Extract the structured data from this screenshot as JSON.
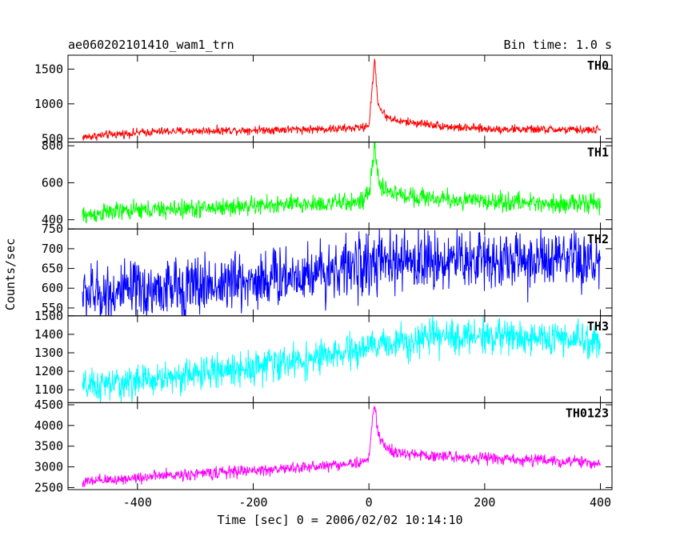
{
  "chart_data": {
    "type": "line",
    "title": "ae060202101410_wam1_trn",
    "subtitle": "Bin time: 1.0 s",
    "xlabel": "Time [sec] 0 = 2006/02/02 10:14:10",
    "ylabel": "Counts/sec",
    "xlim": [
      -520,
      420
    ],
    "xticks": [
      -400,
      -200,
      0,
      200,
      400
    ],
    "grid": false,
    "shared_x_axis": true,
    "panels": [
      {
        "name": "TH0",
        "color": "#ff0000",
        "ylim": [
          450,
          1700
        ],
        "yticks": [
          500,
          1000,
          1500
        ],
        "x": [
          -495,
          -450,
          -400,
          -350,
          -300,
          -250,
          -200,
          -150,
          -100,
          -50,
          -10,
          0,
          5,
          10,
          15,
          20,
          30,
          50,
          100,
          150,
          200,
          250,
          300,
          350,
          400
        ],
        "y": [
          520,
          555,
          585,
          605,
          610,
          618,
          625,
          630,
          635,
          642,
          660,
          700,
          1150,
          1650,
          1050,
          920,
          820,
          750,
          710,
          660,
          640,
          635,
          630,
          625,
          625
        ],
        "noise": 30
      },
      {
        "name": "TH1",
        "color": "#00ff00",
        "ylim": [
          350,
          820
        ],
        "yticks": [
          400,
          600,
          800
        ],
        "x": [
          -495,
          -450,
          -400,
          -350,
          -300,
          -250,
          -200,
          -150,
          -100,
          -50,
          -10,
          0,
          5,
          10,
          15,
          20,
          30,
          50,
          100,
          150,
          200,
          250,
          300,
          350,
          400
        ],
        "y": [
          420,
          440,
          450,
          455,
          460,
          468,
          475,
          480,
          485,
          490,
          500,
          540,
          660,
          800,
          640,
          590,
          560,
          535,
          520,
          505,
          500,
          495,
          490,
          488,
          485
        ],
        "noise": 25
      },
      {
        "name": "TH2",
        "color": "#0000ff",
        "ylim": [
          530,
          750
        ],
        "yticks": [
          550,
          600,
          650,
          700,
          750
        ],
        "x": [
          -495,
          -400,
          -300,
          -200,
          -150,
          -100,
          -50,
          0,
          50,
          100,
          150,
          200,
          250,
          300,
          350,
          400
        ],
        "y": [
          585,
          590,
          605,
          620,
          630,
          640,
          650,
          660,
          665,
          670,
          672,
          675,
          672,
          668,
          665,
          662
        ],
        "noise": 38
      },
      {
        "name": "TH3",
        "color": "#00ffff",
        "ylim": [
          1030,
          1500
        ],
        "yticks": [
          1100,
          1200,
          1300,
          1400,
          1500
        ],
        "x": [
          -495,
          -450,
          -400,
          -350,
          -300,
          -250,
          -200,
          -150,
          -100,
          -50,
          0,
          50,
          100,
          150,
          200,
          250,
          300,
          350,
          400
        ],
        "y": [
          1110,
          1125,
          1145,
          1165,
          1185,
          1205,
          1225,
          1245,
          1265,
          1290,
          1330,
          1360,
          1380,
          1385,
          1395,
          1385,
          1380,
          1370,
          1360
        ],
        "noise": 45
      },
      {
        "name": "TH0123",
        "color": "#ff00ff",
        "ylim": [
          2450,
          4550
        ],
        "yticks": [
          2500,
          3000,
          3500,
          4000,
          4500
        ],
        "x": [
          -495,
          -450,
          -400,
          -350,
          -300,
          -250,
          -200,
          -150,
          -100,
          -50,
          -10,
          0,
          5,
          10,
          15,
          20,
          30,
          50,
          100,
          150,
          200,
          250,
          300,
          350,
          400
        ],
        "y": [
          2620,
          2680,
          2740,
          2790,
          2830,
          2870,
          2910,
          2950,
          3000,
          3060,
          3110,
          3200,
          4000,
          4520,
          3900,
          3650,
          3450,
          3320,
          3280,
          3240,
          3210,
          3180,
          3160,
          3120,
          3080
        ],
        "noise": 70
      }
    ]
  }
}
